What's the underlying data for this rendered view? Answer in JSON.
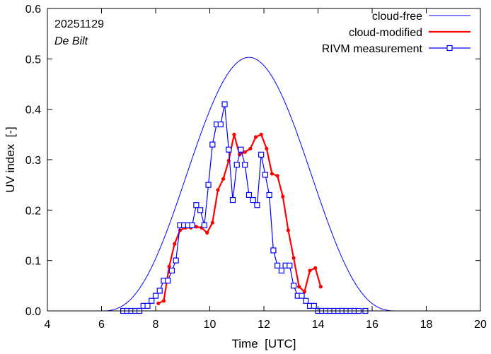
{
  "chart_data": {
    "type": "line",
    "title": "",
    "annotations": {
      "date": "20251129",
      "station": "De Bilt"
    },
    "xlabel": "Time  [UTC]",
    "ylabel": "UV index  [-]",
    "xlim": [
      4,
      20
    ],
    "ylim": [
      0,
      0.6
    ],
    "xticks": [
      4,
      6,
      8,
      10,
      12,
      14,
      16,
      18,
      20
    ],
    "yticks": [
      0.0,
      0.1,
      0.2,
      0.3,
      0.4,
      0.5,
      0.6
    ],
    "xtick_labels": [
      "4",
      "6",
      "8",
      "10",
      "12",
      "14",
      "16",
      "18",
      "20"
    ],
    "ytick_labels": [
      "0.0",
      "0.1",
      "0.2",
      "0.3",
      "0.4",
      "0.5",
      "0.6"
    ],
    "legend_position": "top-right",
    "series": [
      {
        "name": "cloud-free",
        "color": "#0000ff",
        "style": "thin-line",
        "peak_time": 11.45,
        "peak_value": 0.503,
        "start": 6.0,
        "end": 16.9
      },
      {
        "name": "cloud-modified",
        "color": "#ff0000",
        "style": "thick-line-dots",
        "x": [
          8.1,
          8.3,
          8.5,
          8.7,
          8.9,
          9.1,
          9.3,
          9.5,
          9.7,
          9.9,
          10.1,
          10.3,
          10.5,
          10.7,
          10.9,
          11.1,
          11.3,
          11.5,
          11.7,
          11.9,
          12.1,
          12.3,
          12.5,
          12.7,
          12.9,
          13.1,
          13.3,
          13.5,
          13.7,
          13.9,
          14.1
        ],
        "y": [
          0.015,
          0.02,
          0.088,
          0.133,
          0.16,
          0.165,
          0.165,
          0.167,
          0.165,
          0.155,
          0.175,
          0.24,
          0.262,
          0.298,
          0.35,
          0.31,
          0.315,
          0.322,
          0.345,
          0.35,
          0.322,
          0.272,
          0.268,
          0.227,
          0.16,
          0.105,
          0.048,
          0.038,
          0.08,
          0.085,
          0.048
        ]
      },
      {
        "name": "RIVM measurement",
        "color": "#0000ff",
        "style": "line-squares",
        "x": [
          6.8,
          6.95,
          7.1,
          7.25,
          7.4,
          7.55,
          7.7,
          7.85,
          8.0,
          8.15,
          8.3,
          8.45,
          8.6,
          8.75,
          8.9,
          9.05,
          9.2,
          9.35,
          9.5,
          9.65,
          9.8,
          9.95,
          10.1,
          10.25,
          10.4,
          10.55,
          10.7,
          10.85,
          11.0,
          11.15,
          11.3,
          11.45,
          11.6,
          11.75,
          11.9,
          12.05,
          12.2,
          12.35,
          12.5,
          12.65,
          12.8,
          12.95,
          13.1,
          13.25,
          13.4,
          13.55,
          13.7,
          13.85,
          14.0,
          14.15,
          14.3,
          14.45,
          14.6,
          14.75,
          14.9,
          15.05,
          15.2,
          15.35,
          15.5,
          15.75
        ],
        "y": [
          0.0,
          0.0,
          0.0,
          0.0,
          0.0,
          0.01,
          0.01,
          0.02,
          0.03,
          0.04,
          0.06,
          0.06,
          0.08,
          0.1,
          0.17,
          0.17,
          0.17,
          0.17,
          0.21,
          0.2,
          0.17,
          0.25,
          0.33,
          0.37,
          0.37,
          0.41,
          0.32,
          0.22,
          0.29,
          0.32,
          0.29,
          0.23,
          0.22,
          0.21,
          0.31,
          0.27,
          0.23,
          0.12,
          0.09,
          0.08,
          0.09,
          0.09,
          0.05,
          0.03,
          0.03,
          0.02,
          0.01,
          0.01,
          0.0,
          0.0,
          0.0,
          0.0,
          0.0,
          0.0,
          0.0,
          0.0,
          0.0,
          0.0,
          0.0,
          0.0
        ]
      }
    ]
  }
}
